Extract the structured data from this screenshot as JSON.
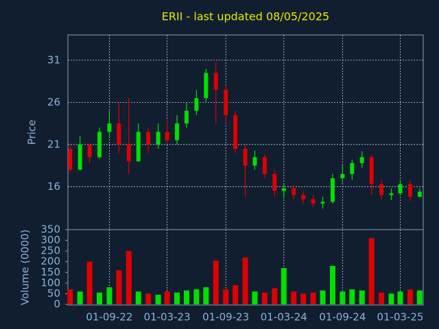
{
  "chart_data": {
    "type": "candlestick",
    "title": "ERII - last updated 08/05/2025",
    "ylabel": "Price",
    "up_color": "#00e000",
    "down_color": "#e00000",
    "grid": true,
    "x": [
      "2022-05-01",
      "2022-06-01",
      "2022-07-01",
      "2022-08-01",
      "2022-09-01",
      "2022-10-01",
      "2022-11-01",
      "2022-12-01",
      "2023-01-01",
      "2023-02-01",
      "2023-03-01",
      "2023-04-01",
      "2023-05-01",
      "2023-06-01",
      "2023-07-01",
      "2023-08-01",
      "2023-09-01",
      "2023-10-01",
      "2023-11-01",
      "2023-12-01",
      "2024-01-01",
      "2024-02-01",
      "2024-03-01",
      "2024-04-01",
      "2024-05-01",
      "2024-06-01",
      "2024-07-01",
      "2024-08-01",
      "2024-09-01",
      "2024-10-01",
      "2024-11-01",
      "2024-12-01",
      "2025-01-01",
      "2025-02-01",
      "2025-03-01",
      "2025-04-01",
      "2025-05-01"
    ],
    "open": [
      20.5,
      18,
      21,
      19.5,
      22.5,
      23.5,
      21,
      19,
      22.5,
      21,
      22.5,
      21.5,
      23.5,
      25,
      26.5,
      29.5,
      27.5,
      24.5,
      20.5,
      18.5,
      19.5,
      17.5,
      15.5,
      15.8,
      15,
      14.5,
      14,
      14.2,
      17,
      17.5,
      18.8,
      19.5,
      16.3,
      15,
      15.2,
      16.3,
      14.8
    ],
    "high": [
      21,
      22,
      21,
      23,
      25,
      26,
      26.5,
      23.5,
      23,
      23.5,
      24,
      24.5,
      26,
      27.5,
      30,
      30.8,
      28,
      25,
      21,
      20.3,
      19.8,
      18,
      16.3,
      16.2,
      15.5,
      15,
      14.8,
      17.5,
      18.6,
      19.2,
      20.2,
      19.8,
      16.8,
      15.8,
      16.8,
      16.8,
      15.8
    ],
    "low": [
      17.5,
      18,
      18.8,
      19.3,
      22,
      20,
      17.5,
      19,
      20,
      20.5,
      21,
      21,
      23,
      24.5,
      26,
      23.5,
      23.5,
      20,
      14.8,
      18,
      17,
      14.8,
      14.6,
      14.5,
      14,
      13.6,
      13.4,
      14,
      16.5,
      16.8,
      18.2,
      15,
      14.5,
      14.4,
      15,
      14.3,
      14.8
    ],
    "close": [
      18,
      21,
      19.5,
      22.5,
      23.5,
      21,
      19,
      22.5,
      21,
      22.5,
      21.5,
      23.5,
      25,
      26.5,
      29.5,
      27.5,
      24.5,
      20.5,
      18.5,
      19.5,
      17.5,
      15.5,
      15.8,
      15,
      14.5,
      14,
      14.2,
      17,
      17.5,
      18.8,
      19.5,
      16.3,
      15,
      15.2,
      16.3,
      14.8,
      15.4
    ],
    "xlim": [
      "2022-04-24",
      "2025-05-12"
    ],
    "xticks": [
      {
        "value": "2022-09-01",
        "label": "01-09-22"
      },
      {
        "value": "2023-03-01",
        "label": "01-03-23"
      },
      {
        "value": "2023-09-01",
        "label": "01-09-23"
      },
      {
        "value": "2024-03-01",
        "label": "01-03-24"
      },
      {
        "value": "2024-09-01",
        "label": "01-09-24"
      },
      {
        "value": "2025-03-01",
        "label": "01-03-25"
      }
    ],
    "ylim": [
      10.9,
      34.0
    ],
    "yticks": [
      16,
      21,
      26,
      31
    ],
    "volume": {
      "ylabel": "Volume (0000)",
      "ylim": [
        0,
        350
      ],
      "yticks": [
        0,
        50,
        100,
        150,
        200,
        250,
        300,
        350
      ],
      "values": [
        70,
        60,
        200,
        55,
        80,
        160,
        250,
        60,
        50,
        45,
        60,
        55,
        65,
        70,
        80,
        205,
        70,
        90,
        220,
        60,
        55,
        75,
        170,
        60,
        50,
        55,
        65,
        180,
        60,
        70,
        65,
        310,
        55,
        50,
        60,
        70,
        65
      ]
    }
  }
}
